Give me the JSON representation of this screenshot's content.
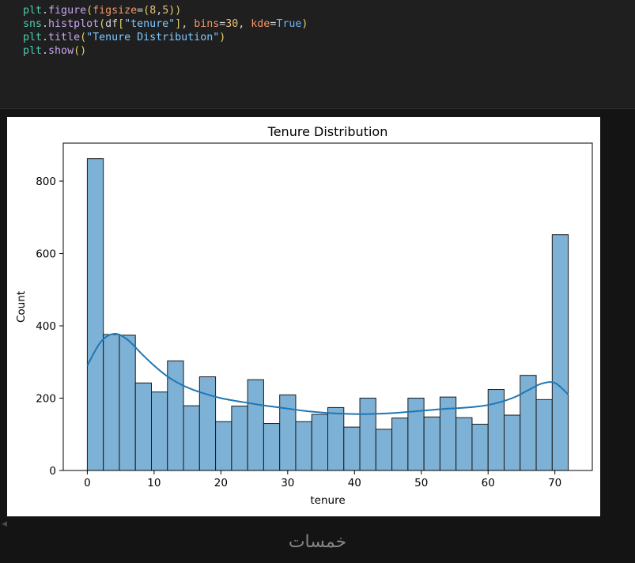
{
  "code": {
    "lines": [
      [
        {
          "t": "plt",
          "c": "var"
        },
        {
          "t": ".",
          "c": "plain"
        },
        {
          "t": "figure",
          "c": "fn"
        },
        {
          "t": "(",
          "c": "paren"
        },
        {
          "t": "figsize",
          "c": "kw"
        },
        {
          "t": "=",
          "c": "plain"
        },
        {
          "t": "(",
          "c": "paren"
        },
        {
          "t": "8",
          "c": "num"
        },
        {
          "t": ",",
          "c": "plain"
        },
        {
          "t": "5",
          "c": "num"
        },
        {
          "t": "))",
          "c": "paren"
        }
      ],
      [
        {
          "t": "sns",
          "c": "var"
        },
        {
          "t": ".",
          "c": "plain"
        },
        {
          "t": "histplot",
          "c": "fn"
        },
        {
          "t": "(",
          "c": "paren"
        },
        {
          "t": "df",
          "c": "plain"
        },
        {
          "t": "[",
          "c": "paren"
        },
        {
          "t": "\"tenure\"",
          "c": "str"
        },
        {
          "t": "]",
          "c": "paren"
        },
        {
          "t": ", ",
          "c": "plain"
        },
        {
          "t": "bins",
          "c": "kw"
        },
        {
          "t": "=",
          "c": "plain"
        },
        {
          "t": "30",
          "c": "num"
        },
        {
          "t": ", ",
          "c": "plain"
        },
        {
          "t": "kde",
          "c": "kw"
        },
        {
          "t": "=",
          "c": "plain"
        },
        {
          "t": "True",
          "c": "bool"
        },
        {
          "t": ")",
          "c": "paren"
        }
      ],
      [
        {
          "t": "plt",
          "c": "var"
        },
        {
          "t": ".",
          "c": "plain"
        },
        {
          "t": "title",
          "c": "fn"
        },
        {
          "t": "(",
          "c": "paren"
        },
        {
          "t": "\"Tenure Distribution\"",
          "c": "str"
        },
        {
          "t": ")",
          "c": "paren"
        }
      ],
      [
        {
          "t": "plt",
          "c": "var"
        },
        {
          "t": ".",
          "c": "plain"
        },
        {
          "t": "show",
          "c": "fn"
        },
        {
          "t": "()",
          "c": "paren"
        }
      ]
    ]
  },
  "chart_data": {
    "type": "bar",
    "title": "Tenure Distribution",
    "xlabel": "tenure",
    "ylabel": "Count",
    "xlim": [
      -3.6,
      75.6
    ],
    "ylim": [
      0,
      905
    ],
    "xticks": [
      0,
      10,
      20,
      30,
      40,
      50,
      60,
      70
    ],
    "yticks": [
      0,
      200,
      400,
      600,
      800
    ],
    "bin_edges": [
      0,
      2.4,
      4.8,
      7.2,
      9.6,
      12,
      14.4,
      16.8,
      19.2,
      21.6,
      24,
      26.4,
      28.8,
      31.2,
      33.6,
      36,
      38.4,
      40.8,
      43.2,
      45.6,
      48,
      50.4,
      52.8,
      55.2,
      57.6,
      60,
      62.4,
      64.8,
      67.2,
      69.6,
      72
    ],
    "values": [
      862,
      376,
      374,
      242,
      217,
      303,
      179,
      259,
      135,
      178,
      251,
      130,
      209,
      135,
      155,
      174,
      120,
      200,
      114,
      145,
      200,
      148,
      203,
      146,
      128,
      224,
      153,
      263,
      196,
      652
    ],
    "kde": {
      "x": [
        0,
        2,
        4,
        6,
        8,
        10,
        12,
        14,
        16,
        18,
        20,
        22,
        24,
        26,
        28,
        30,
        32,
        34,
        36,
        38,
        40,
        42,
        44,
        46,
        48,
        50,
        52,
        54,
        56,
        58,
        60,
        62,
        64,
        66,
        68,
        70,
        72
      ],
      "y": [
        290,
        355,
        378,
        362,
        325,
        290,
        260,
        238,
        222,
        210,
        200,
        193,
        187,
        181,
        176,
        171,
        166,
        162,
        159,
        157,
        156,
        156,
        157,
        159,
        162,
        165,
        168,
        171,
        173,
        176,
        181,
        190,
        203,
        222,
        240,
        242,
        210
      ]
    },
    "bar_color": "#7db1d5",
    "bar_edge": "#1a1a1a",
    "kde_color": "#1f77b4",
    "grid": false
  },
  "watermark": "خمسات"
}
